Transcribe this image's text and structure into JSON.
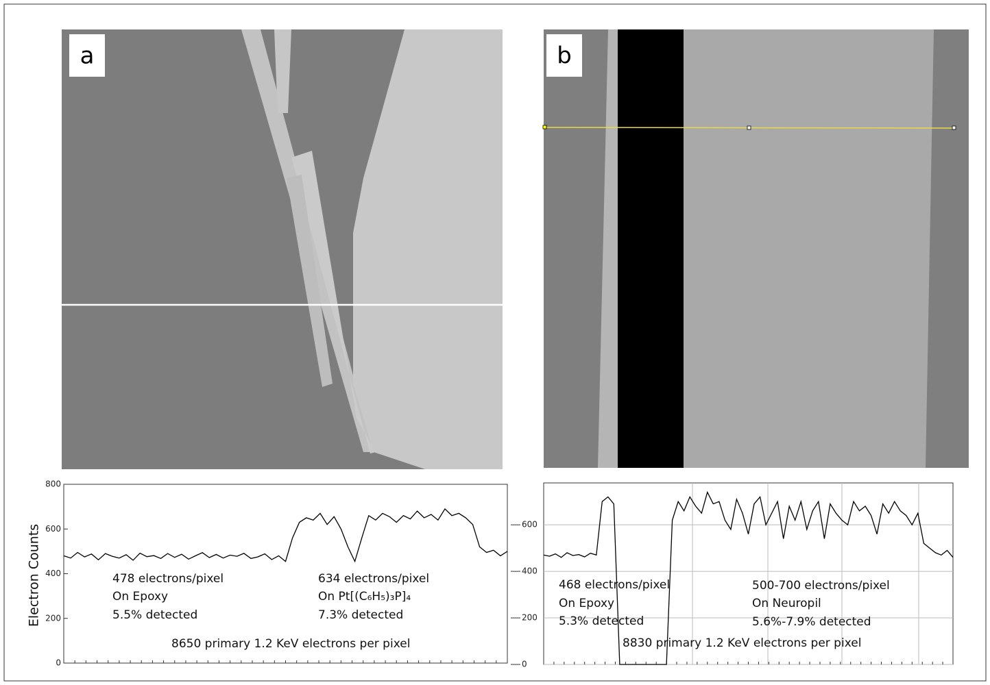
{
  "chart_data": [
    {
      "type": "line",
      "panel_label": "a",
      "ylabel": "Electron Counts",
      "ylim": [
        0,
        800
      ],
      "yticks": [
        0,
        200,
        400,
        600,
        800
      ],
      "grid": false,
      "series": [
        {
          "color": "#000000",
          "values": [
            480,
            470,
            495,
            475,
            488,
            462,
            490,
            478,
            470,
            485,
            460,
            492,
            476,
            481,
            468,
            490,
            473,
            487,
            465,
            480,
            494,
            472,
            486,
            470,
            483,
            478,
            491,
            468,
            475,
            489,
            463,
            480,
            455,
            560,
            630,
            650,
            640,
            670,
            620,
            655,
            600,
            520,
            455,
            560,
            660,
            640,
            670,
            655,
            630,
            660,
            645,
            680,
            650,
            665,
            640,
            690,
            660,
            670,
            650,
            620,
            520,
            495,
            505,
            480,
            500
          ]
        }
      ],
      "annotations": [
        "478 electrons/pixel",
        "On Epoxy",
        "5.5% detected",
        "634 electrons/pixel",
        "On Pt[(C₆H₅)₃P]₄",
        "7.3% detected",
        "8650 primary 1.2 KeV electrons per pixel"
      ]
    },
    {
      "type": "line",
      "panel_label": "b",
      "ylim": [
        0,
        780
      ],
      "yticks": [
        0,
        200,
        400,
        600
      ],
      "grid": true,
      "series": [
        {
          "color": "#000000",
          "values": [
            470,
            465,
            475,
            460,
            480,
            468,
            472,
            462,
            478,
            470,
            700,
            720,
            690,
            0,
            0,
            0,
            0,
            0,
            0,
            0,
            0,
            0,
            620,
            700,
            660,
            720,
            680,
            650,
            740,
            690,
            700,
            620,
            580,
            710,
            650,
            560,
            690,
            720,
            600,
            650,
            700,
            540,
            680,
            620,
            700,
            580,
            660,
            700,
            540,
            690,
            650,
            620,
            600,
            700,
            660,
            680,
            640,
            560,
            690,
            650,
            700,
            660,
            640,
            600,
            650,
            520,
            500,
            480,
            470,
            490,
            460
          ]
        }
      ],
      "annotations": [
        "468 electrons/pixel",
        "On Epoxy",
        "5.3% detected",
        "500-700 electrons/pixel",
        "On Neuropil",
        "5.6%-7.9% detected",
        "8830 primary 1.2 KeV electrons per pixel"
      ]
    }
  ]
}
